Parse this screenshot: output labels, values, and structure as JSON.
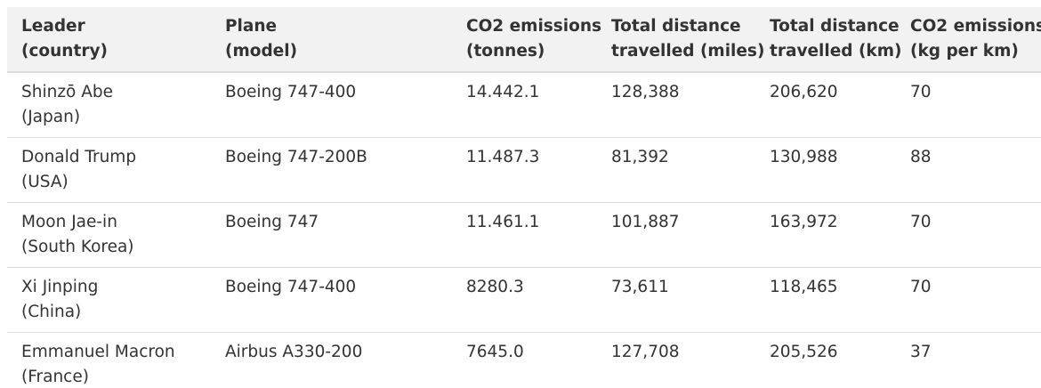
{
  "table": {
    "header": [
      [
        "Leader",
        "(country)"
      ],
      [
        "Plane",
        "(model)"
      ],
      [
        "CO2 emissions",
        "(tonnes)"
      ],
      [
        "Total distance",
        "travelled (miles)"
      ],
      [
        "Total distance",
        "travelled (km)"
      ],
      [
        "CO2 emissions",
        "(kg per km)"
      ]
    ],
    "rows": [
      [
        [
          "Shinzō Abe",
          "(Japan)"
        ],
        [
          "Boeing 747-400"
        ],
        [
          "14.442.1"
        ],
        [
          "128,388"
        ],
        [
          "206,620"
        ],
        [
          "70"
        ]
      ],
      [
        [
          "Donald Trump",
          "(USA)"
        ],
        [
          "Boeing 747-200B"
        ],
        [
          "11.487.3"
        ],
        [
          "81,392"
        ],
        [
          "130,988"
        ],
        [
          "88"
        ]
      ],
      [
        [
          "Moon Jae-in",
          "(South Korea)"
        ],
        [
          "Boeing 747"
        ],
        [
          "11.461.1"
        ],
        [
          "101,887"
        ],
        [
          "163,972"
        ],
        [
          "70"
        ]
      ],
      [
        [
          "Xi Jinping",
          "(China)"
        ],
        [
          "Boeing 747-400"
        ],
        [
          "8280.3"
        ],
        [
          "73,611"
        ],
        [
          "118,465"
        ],
        [
          "70"
        ]
      ],
      [
        [
          "Emmanuel Macron",
          "(France)"
        ],
        [
          "Airbus A330-200"
        ],
        [
          "7645.0"
        ],
        [
          "127,708"
        ],
        [
          "205,526"
        ],
        [
          "37"
        ]
      ]
    ]
  }
}
